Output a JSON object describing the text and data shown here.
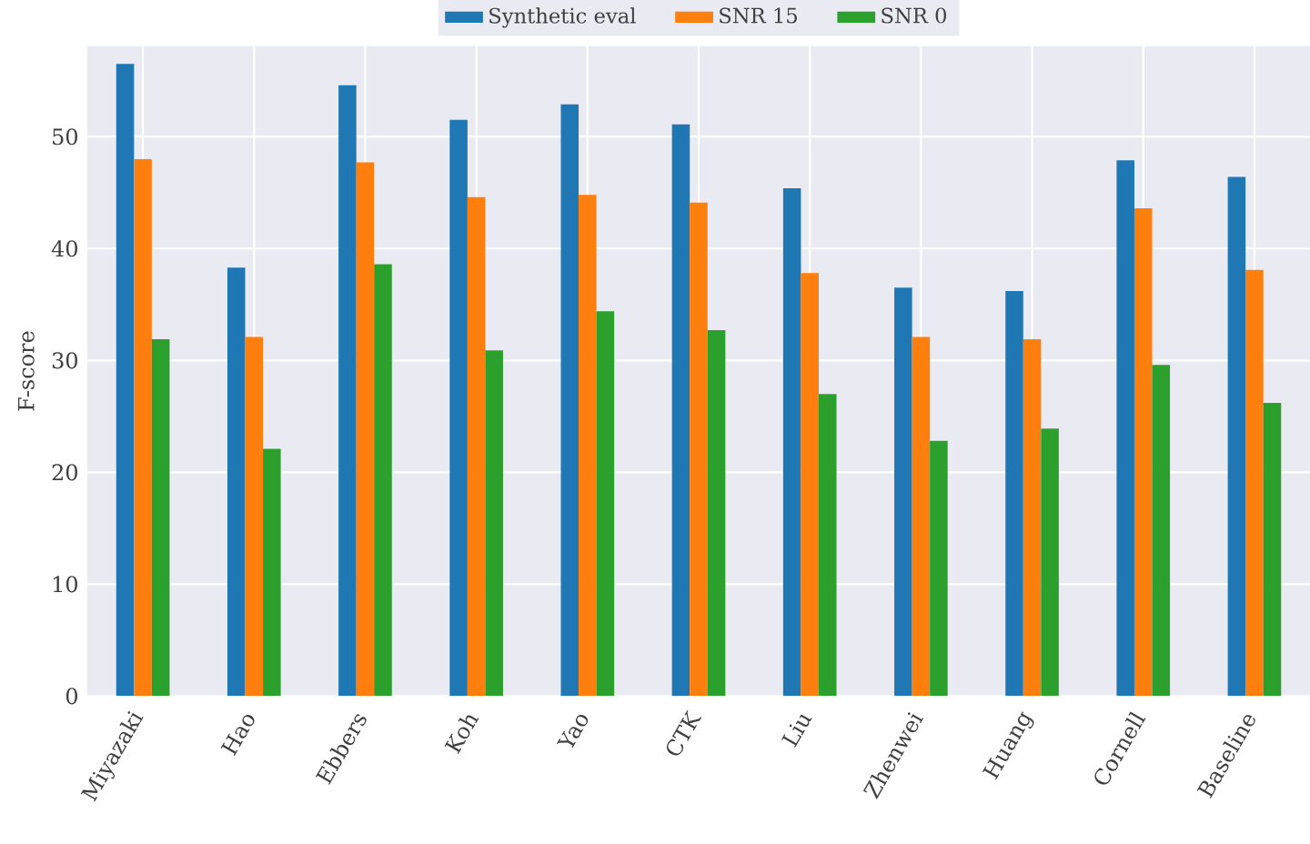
{
  "chart_data": {
    "type": "bar",
    "ylabel": "F-score",
    "categories": [
      "Miyazaki",
      "Hao",
      "Ebbers",
      "Koh",
      "Yao",
      "CTK",
      "Liu",
      "Zhenwei",
      "Huang",
      "Cornell",
      "Baseline"
    ],
    "series": [
      {
        "name": "Synthetic eval",
        "color": "#1f77b4",
        "values": [
          56.5,
          38.3,
          54.6,
          51.5,
          52.9,
          51.1,
          45.4,
          36.5,
          36.2,
          47.9,
          46.4
        ]
      },
      {
        "name": "SNR 15",
        "color": "#ff7f0e",
        "values": [
          48.0,
          32.1,
          47.7,
          44.6,
          44.8,
          44.1,
          37.8,
          32.1,
          31.9,
          43.6,
          38.1
        ]
      },
      {
        "name": "SNR 0",
        "color": "#2ca02c",
        "values": [
          31.9,
          22.1,
          38.6,
          30.9,
          34.4,
          32.7,
          27.0,
          22.8,
          23.9,
          29.6,
          26.2
        ]
      }
    ],
    "ylim": [
      0,
      58.1
    ],
    "yticks": [
      0,
      10,
      20,
      30,
      40,
      50
    ],
    "grid": true,
    "legend": "top"
  }
}
